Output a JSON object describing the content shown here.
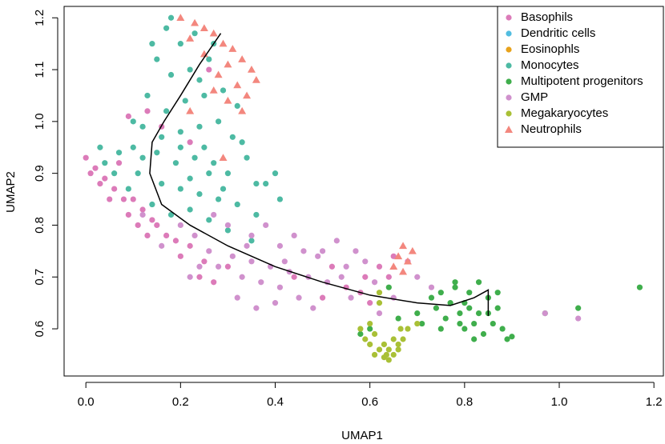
{
  "chart_data": {
    "type": "scatter",
    "x_label": "UMAP1",
    "y_label": "UMAP2",
    "xlim": [
      -0.046,
      1.22
    ],
    "ylim": [
      0.509,
      1.222
    ],
    "xticks": [
      {
        "value": 0,
        "label": "0.0"
      },
      0.2,
      0.4,
      0.6,
      0.8,
      {
        "value": 1,
        "label": "1.0"
      },
      1.2
    ],
    "yticks": [
      0.6,
      0.7,
      0.8,
      0.9,
      {
        "value": 1,
        "label": "1.0"
      },
      1.1,
      1.2
    ],
    "grid": false,
    "legend_position": "top-right",
    "series": [
      {
        "name": "Basophils",
        "color": "#dc7bb9",
        "marker": "circle",
        "x": [
          0.0,
          0.02,
          0.04,
          0.06,
          0.08,
          0.03,
          0.01,
          0.07,
          0.1,
          0.12,
          0.14,
          0.15,
          0.17,
          0.13,
          0.11,
          0.19,
          0.22,
          0.2,
          0.25,
          0.24,
          0.27,
          0.3,
          0.05,
          0.09,
          0.16,
          0.13,
          0.22,
          0.26,
          0.09,
          0.44,
          0.5,
          0.55,
          0.59,
          0.62,
          0.65,
          0.64,
          0.68,
          0.58,
          0.6,
          0.52
        ],
        "y": [
          0.93,
          0.91,
          0.89,
          0.87,
          0.85,
          0.88,
          0.9,
          0.92,
          0.85,
          0.83,
          0.81,
          0.8,
          0.78,
          0.78,
          0.8,
          0.77,
          0.76,
          0.74,
          0.73,
          0.7,
          0.69,
          0.72,
          0.85,
          0.82,
          0.99,
          1.02,
          0.96,
          1.1,
          1.01,
          0.7,
          0.66,
          0.68,
          0.7,
          0.72,
          0.74,
          0.7,
          0.73,
          0.67,
          0.65,
          0.72
        ]
      },
      {
        "name": "Dendritic cells",
        "color": "#52bde0",
        "marker": "circle",
        "x": [],
        "y": []
      },
      {
        "name": "Eosinophls",
        "color": "#e8a21b",
        "marker": "circle",
        "x": [],
        "y": []
      },
      {
        "name": "Monocytes",
        "color": "#4dbaa3",
        "marker": "circle",
        "x": [
          0.17,
          0.2,
          0.23,
          0.15,
          0.18,
          0.22,
          0.26,
          0.13,
          0.17,
          0.21,
          0.25,
          0.29,
          0.32,
          0.12,
          0.2,
          0.24,
          0.28,
          0.31,
          0.1,
          0.15,
          0.19,
          0.23,
          0.27,
          0.3,
          0.34,
          0.36,
          0.07,
          0.04,
          0.11,
          0.16,
          0.2,
          0.24,
          0.28,
          0.32,
          0.36,
          0.14,
          0.18,
          0.22,
          0.26,
          0.3,
          0.35,
          0.09,
          0.06,
          0.38,
          0.41,
          0.4,
          0.14,
          0.18,
          0.24,
          0.27,
          0.16,
          0.2,
          0.25,
          0.22,
          0.12,
          0.33,
          0.29,
          0.03,
          0.1,
          0.26
        ],
        "y": [
          1.18,
          1.15,
          1.17,
          1.12,
          1.09,
          1.1,
          1.12,
          1.05,
          1.02,
          1.04,
          1.05,
          1.06,
          1.03,
          0.99,
          0.98,
          0.99,
          1.0,
          0.97,
          0.95,
          0.94,
          0.92,
          0.93,
          0.92,
          0.9,
          0.93,
          0.88,
          0.94,
          0.92,
          0.9,
          0.88,
          0.87,
          0.86,
          0.85,
          0.84,
          0.82,
          0.84,
          0.82,
          0.83,
          0.81,
          0.79,
          0.77,
          0.87,
          0.9,
          0.88,
          0.85,
          0.9,
          1.15,
          1.2,
          1.08,
          1.15,
          0.97,
          0.95,
          0.95,
          0.89,
          0.93,
          0.96,
          0.87,
          0.95,
          1.0,
          0.9
        ]
      },
      {
        "name": "Multipotent progenitors",
        "color": "#3fae4c",
        "marker": "circle",
        "x": [
          0.75,
          0.77,
          0.79,
          0.81,
          0.83,
          0.85,
          0.87,
          0.82,
          0.8,
          0.84,
          0.86,
          0.88,
          0.78,
          0.76,
          0.74,
          0.8,
          0.83,
          0.85,
          0.89,
          0.9,
          0.82,
          0.79,
          0.73,
          0.71,
          0.7,
          0.78,
          0.81,
          0.87,
          0.6,
          0.64,
          0.66,
          0.58,
          1.17,
          1.04,
          0.97,
          0.75
        ],
        "y": [
          0.67,
          0.65,
          0.63,
          0.67,
          0.69,
          0.66,
          0.64,
          0.61,
          0.6,
          0.59,
          0.61,
          0.6,
          0.68,
          0.62,
          0.64,
          0.65,
          0.63,
          0.63,
          0.58,
          0.585,
          0.58,
          0.61,
          0.66,
          0.61,
          0.63,
          0.69,
          0.64,
          0.67,
          0.6,
          0.68,
          0.62,
          0.59,
          0.68,
          0.64,
          0.63,
          0.6
        ]
      },
      {
        "name": "GMP",
        "color": "#d091cd",
        "marker": "circle",
        "x": [
          0.12,
          0.16,
          0.2,
          0.23,
          0.26,
          0.28,
          0.31,
          0.33,
          0.35,
          0.37,
          0.39,
          0.41,
          0.43,
          0.45,
          0.47,
          0.49,
          0.51,
          0.53,
          0.55,
          0.57,
          0.59,
          0.61,
          0.46,
          0.44,
          0.41,
          0.38,
          0.35,
          0.32,
          0.36,
          0.4,
          0.48,
          0.3,
          0.27,
          0.24,
          0.22,
          0.42,
          0.54,
          0.62,
          0.7,
          0.73,
          0.65,
          0.56,
          0.5,
          0.34,
          0.97,
          1.04
        ],
        "y": [
          0.82,
          0.76,
          0.8,
          0.78,
          0.75,
          0.72,
          0.74,
          0.7,
          0.73,
          0.69,
          0.72,
          0.68,
          0.71,
          0.66,
          0.7,
          0.74,
          0.69,
          0.77,
          0.72,
          0.75,
          0.73,
          0.69,
          0.75,
          0.78,
          0.76,
          0.8,
          0.78,
          0.66,
          0.64,
          0.65,
          0.64,
          0.8,
          0.82,
          0.72,
          0.7,
          0.73,
          0.7,
          0.63,
          0.7,
          0.68,
          0.66,
          0.66,
          0.75,
          0.76,
          0.63,
          0.62
        ]
      },
      {
        "name": "Megakaryocytes",
        "color": "#a9c036",
        "marker": "circle",
        "x": [
          0.62,
          0.6,
          0.59,
          0.6,
          0.61,
          0.63,
          0.64,
          0.65,
          0.66,
          0.67,
          0.665,
          0.66,
          0.62,
          0.64,
          0.63,
          0.61,
          0.58,
          0.68,
          0.7,
          0.62,
          0.65,
          0.635
        ],
        "y": [
          0.65,
          0.61,
          0.58,
          0.57,
          0.55,
          0.545,
          0.54,
          0.55,
          0.56,
          0.58,
          0.6,
          0.57,
          0.56,
          0.56,
          0.57,
          0.59,
          0.6,
          0.6,
          0.61,
          0.67,
          0.58,
          0.55
        ]
      },
      {
        "name": "Neutrophils",
        "color": "#f3877e",
        "marker": "triangle",
        "x": [
          0.2,
          0.23,
          0.25,
          0.22,
          0.27,
          0.29,
          0.31,
          0.33,
          0.3,
          0.35,
          0.28,
          0.32,
          0.34,
          0.36,
          0.3,
          0.33,
          0.25,
          0.27,
          0.22,
          0.29,
          0.67,
          0.66,
          0.68,
          0.65,
          0.67,
          0.69
        ],
        "y": [
          1.2,
          1.19,
          1.18,
          1.16,
          1.17,
          1.15,
          1.14,
          1.12,
          1.11,
          1.1,
          1.09,
          1.07,
          1.05,
          1.08,
          1.04,
          1.02,
          1.13,
          1.06,
          1.02,
          0.93,
          0.76,
          0.74,
          0.73,
          0.72,
          0.71,
          0.75
        ]
      }
    ],
    "curve": {
      "color": "#000000",
      "x": [
        0.285,
        0.24,
        0.2,
        0.165,
        0.14,
        0.135,
        0.16,
        0.22,
        0.3,
        0.4,
        0.5,
        0.6,
        0.7,
        0.77,
        0.82,
        0.85,
        0.85
      ],
      "y": [
        1.17,
        1.11,
        1.05,
        1.0,
        0.96,
        0.9,
        0.84,
        0.8,
        0.76,
        0.72,
        0.69,
        0.665,
        0.65,
        0.645,
        0.66,
        0.675,
        0.625
      ]
    }
  }
}
